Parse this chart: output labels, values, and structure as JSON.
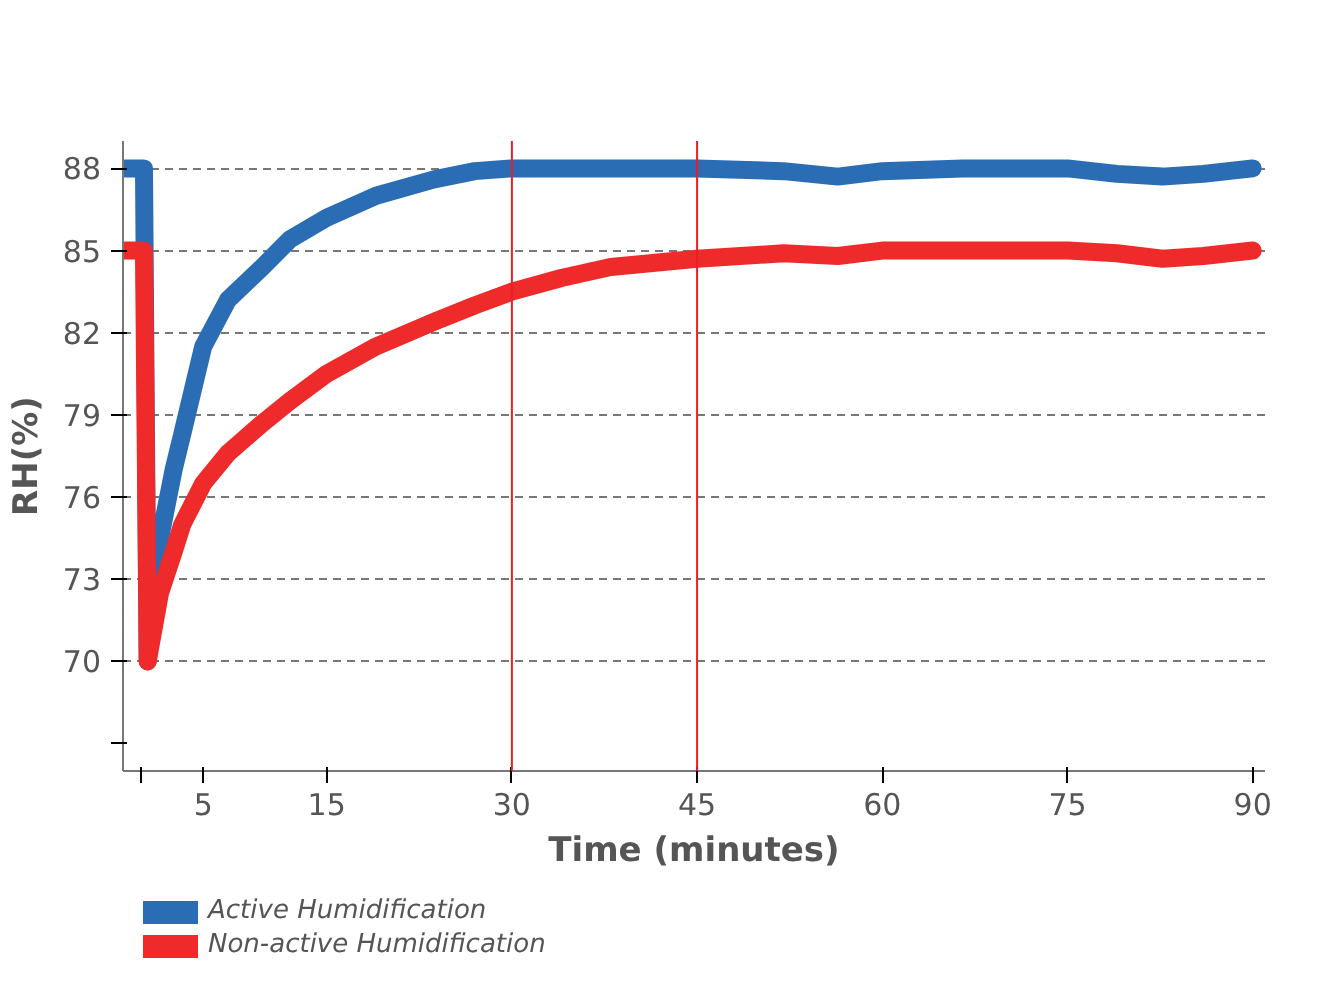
{
  "chart_data": {
    "type": "line",
    "xlabel": "Time (minutes)",
    "ylabel": "RH(%)",
    "xlim": [
      -1.5,
      91
    ],
    "ylim": [
      66,
      89
    ],
    "xticks": [
      {
        "value": 0,
        "label": null
      },
      5,
      15,
      30,
      45,
      60,
      75,
      90
    ],
    "yticks": [
      {
        "value": 67,
        "label": null
      },
      70,
      73,
      76,
      79,
      82,
      85,
      88
    ],
    "grid": "y",
    "legend": "bottom left",
    "line_style": "solid",
    "marker": "none",
    "ref_lines": [
      {
        "axis": "x",
        "value": 30,
        "label": null,
        "color": "#ee1c25"
      },
      {
        "axis": "x",
        "value": 45,
        "label": null,
        "color": "#ee1c25"
      }
    ],
    "series": [
      {
        "name": "Active Humidification",
        "color": "#2a6db5",
        "x": [
          -1.3,
          0.2,
          0.5,
          1.5,
          2.6,
          3.3,
          5,
          7,
          9.8,
          12,
          15,
          19,
          23.7,
          27,
          30,
          40,
          45,
          52,
          56.4,
          60,
          66.5,
          75,
          79,
          82.7,
          86,
          90
        ],
        "values": [
          88,
          88,
          70,
          74.5,
          77,
          78.3,
          81.5,
          83.2,
          84.4,
          85.4,
          86.2,
          87,
          87.6,
          87.9,
          88,
          88,
          88,
          87.9,
          87.7,
          87.9,
          88,
          88,
          87.8,
          87.7,
          87.8,
          88
        ]
      },
      {
        "name": "Non-active Humidification",
        "color": "#ee2a2a",
        "x": [
          -1.3,
          0.2,
          0.5,
          1.5,
          2.6,
          3.3,
          5,
          7,
          9.8,
          12,
          15,
          19,
          23.7,
          27,
          30,
          34,
          38,
          45,
          52,
          56.4,
          60,
          66.5,
          75,
          79,
          82.7,
          86,
          90
        ],
        "values": [
          85,
          85,
          70,
          72.5,
          74,
          75,
          76.5,
          77.6,
          78.7,
          79.5,
          80.5,
          81.5,
          82.4,
          83,
          83.5,
          84,
          84.4,
          84.7,
          84.9,
          84.8,
          85,
          85,
          85,
          84.9,
          84.7,
          84.8,
          85
        ]
      }
    ]
  }
}
